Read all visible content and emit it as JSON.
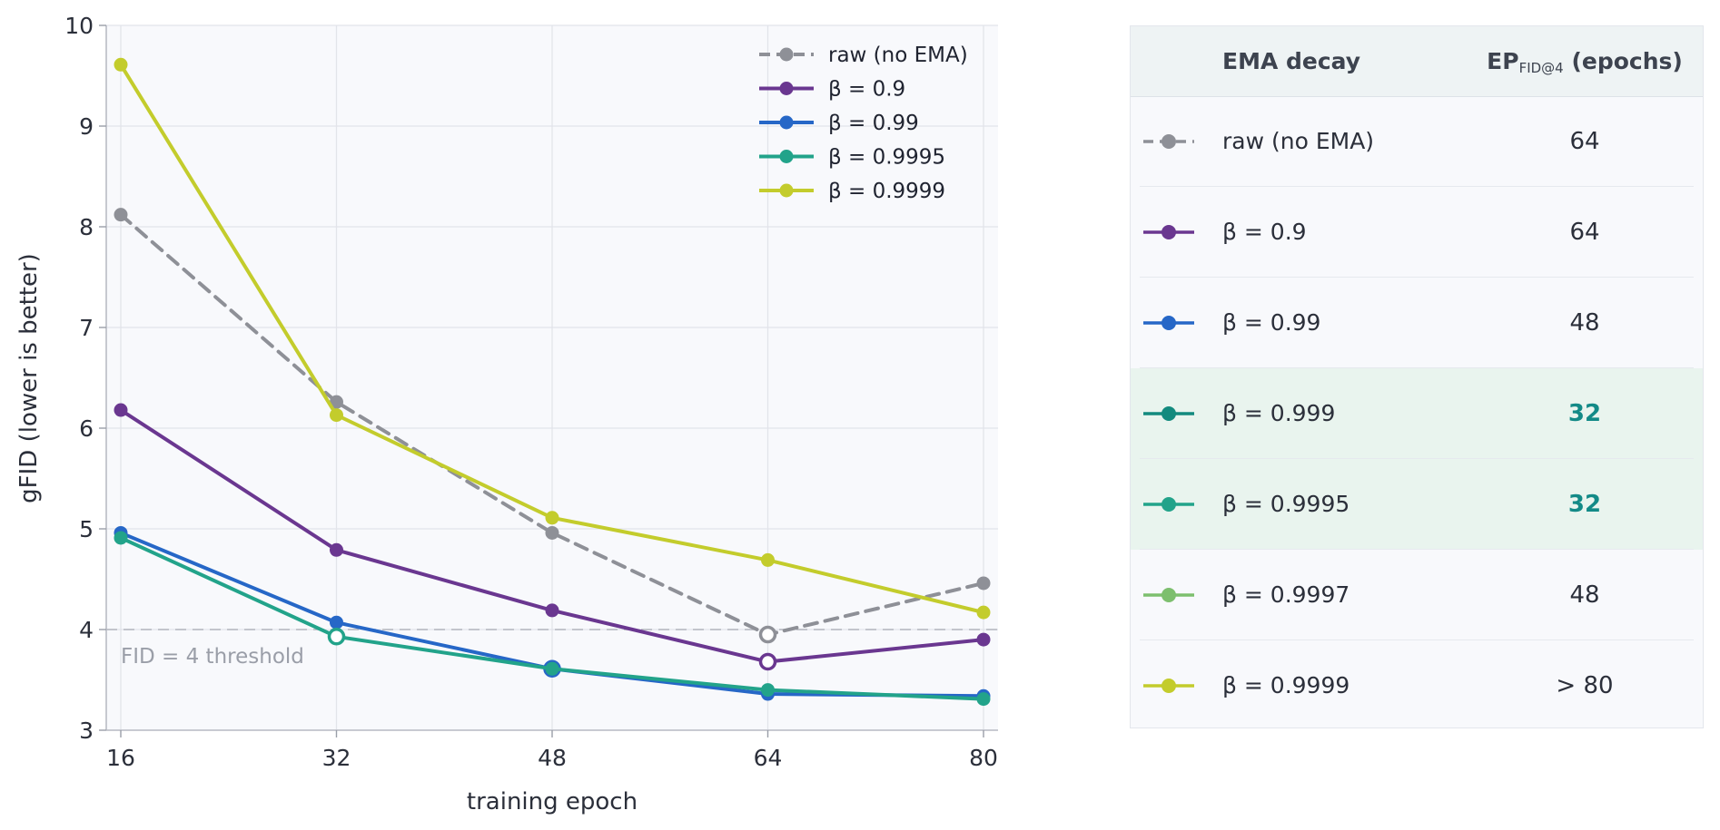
{
  "chart_data": {
    "type": "line",
    "title": "",
    "xlabel": "training epoch",
    "ylabel": "gFID (lower is better)",
    "x": [
      16,
      32,
      48,
      64,
      80
    ],
    "xticks": [
      "16",
      "32",
      "48",
      "64",
      "80"
    ],
    "ylim": [
      3,
      10
    ],
    "yticks": [
      "3",
      "4",
      "5",
      "6",
      "7",
      "8",
      "9",
      "10"
    ],
    "grid": true,
    "legend_position": "top-right",
    "threshold": {
      "value": 4,
      "label": "FID = 4 threshold",
      "color": "#b3b6bd"
    },
    "series": [
      {
        "name": "raw (no EMA)",
        "color": "#8e9097",
        "dashed": true,
        "values": [
          8.12,
          6.26,
          4.96,
          3.95,
          4.46
        ],
        "hollow_index": 3
      },
      {
        "name": "β = 0.9",
        "color": "#6a3790",
        "dashed": false,
        "values": [
          6.18,
          4.79,
          4.19,
          3.68,
          3.9
        ],
        "hollow_index": 3
      },
      {
        "name": "β = 0.99",
        "color": "#2667c7",
        "dashed": false,
        "values": [
          4.96,
          4.07,
          3.61,
          3.36,
          3.34
        ],
        "hollow_index": 2
      },
      {
        "name": "β = 0.9995",
        "color": "#22a38a",
        "dashed": false,
        "values": [
          4.91,
          3.93,
          3.61,
          3.4,
          3.31
        ],
        "hollow_index": 1
      },
      {
        "name": "β = 0.9999",
        "color": "#c3cc2c",
        "dashed": false,
        "values": [
          9.61,
          6.13,
          5.11,
          4.69,
          4.17
        ],
        "hollow_index": -1
      }
    ]
  },
  "table": {
    "header": {
      "decay": "EMA decay",
      "ep_main": "EP",
      "ep_sub": "FID@4",
      "ep_tail": " (epochs)"
    },
    "rows": [
      {
        "label": "raw (no EMA)",
        "value": "64",
        "color": "#8e9097",
        "dashed": true,
        "highlight": false
      },
      {
        "label": "β = 0.9",
        "value": "64",
        "color": "#6a3790",
        "dashed": false,
        "highlight": false
      },
      {
        "label": "β = 0.99",
        "value": "48",
        "color": "#2667c7",
        "dashed": false,
        "highlight": false
      },
      {
        "label": "β = 0.999",
        "value": "32",
        "color": "#138a7e",
        "dashed": false,
        "highlight": true
      },
      {
        "label": "β = 0.9995",
        "value": "32",
        "color": "#22a38a",
        "dashed": false,
        "highlight": true
      },
      {
        "label": "β = 0.9997",
        "value": "48",
        "color": "#7dbf6e",
        "dashed": false,
        "highlight": false
      },
      {
        "label": "β = 0.9999",
        "value": "> 80",
        "color": "#c3cc2c",
        "dashed": false,
        "highlight": false
      }
    ]
  }
}
